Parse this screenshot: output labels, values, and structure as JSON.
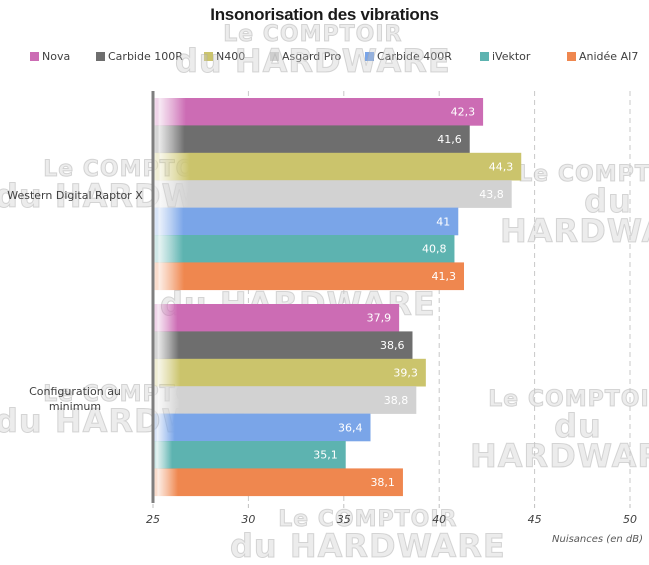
{
  "chart_data": {
    "type": "bar",
    "orientation": "horizontal",
    "title": "Insonorisation des vibrations",
    "xlabel": "Nuisances (en dB)",
    "ylabel": "",
    "xlim": [
      25,
      50
    ],
    "xticks": [
      25,
      30,
      35,
      40,
      45,
      50
    ],
    "xtick_labels": [
      "25",
      "30",
      "35",
      "40",
      "45",
      "50"
    ],
    "grid": "vertical dashed",
    "legend_position": "top",
    "categories": [
      "Western Digital Raptor X",
      "Configuration au minimum"
    ],
    "category_labels": [
      [
        "Western Digital Raptor X"
      ],
      [
        "Configuration au",
        "minimum"
      ]
    ],
    "series": [
      {
        "name": "Nova",
        "color": "#cc6cb4",
        "values": [
          42.3,
          37.9
        ],
        "labels": [
          "42,3",
          "37,9"
        ]
      },
      {
        "name": "Carbide 100R",
        "color": "#6e6e6e",
        "values": [
          41.6,
          38.6
        ],
        "labels": [
          "41,6",
          "38,6"
        ]
      },
      {
        "name": "N400",
        "color": "#cbc46c",
        "values": [
          44.3,
          39.3
        ],
        "labels": [
          "44,3",
          "39,3"
        ]
      },
      {
        "name": "Asgard Pro",
        "color": "#d2d2d2",
        "values": [
          43.8,
          38.8
        ],
        "labels": [
          "43,8",
          "38,8"
        ]
      },
      {
        "name": "Carbide 400R",
        "color": "#7aa5e8",
        "values": [
          41.0,
          36.4
        ],
        "labels": [
          "41",
          "36,4"
        ]
      },
      {
        "name": "iVektor",
        "color": "#5db3b0",
        "values": [
          40.8,
          35.1
        ],
        "labels": [
          "40,8",
          "35,1"
        ]
      },
      {
        "name": "Anidée AI7",
        "color": "#ef874f",
        "values": [
          41.3,
          38.1
        ],
        "labels": [
          "41,3",
          "38,1"
        ]
      }
    ]
  },
  "watermark": {
    "line1": "Le COMPTOIR",
    "line2": "du HARDWARE"
  }
}
